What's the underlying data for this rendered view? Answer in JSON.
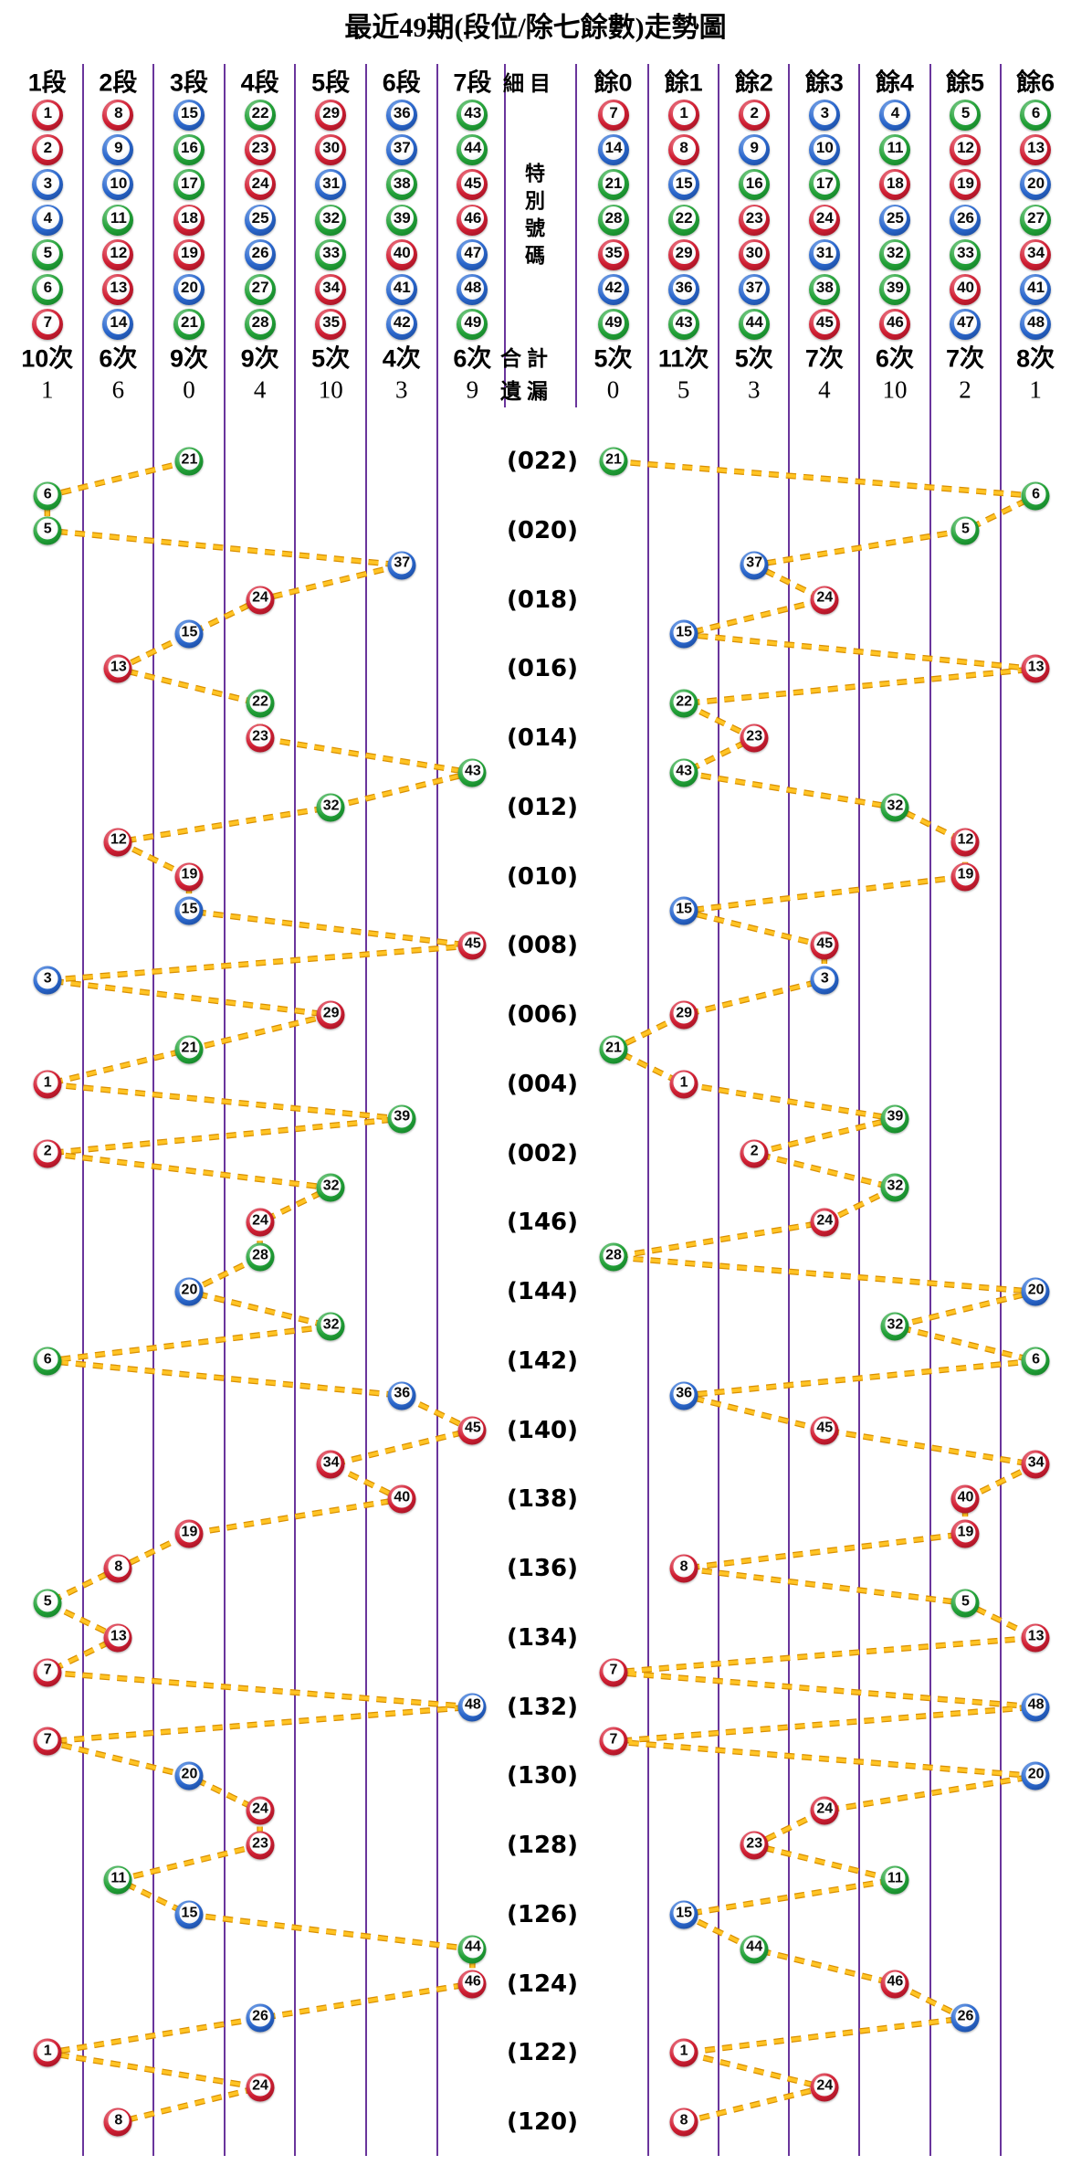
{
  "title": "最近49期(段位/除七餘數)走勢圖",
  "header": {
    "middle": {
      "detail": "細目",
      "special": "特別號碼",
      "total": "合計",
      "miss": "遺漏"
    },
    "left_columns": [
      {
        "label": "1段",
        "balls": [
          1,
          2,
          3,
          4,
          5,
          6,
          7
        ],
        "count": "10次",
        "miss": "1"
      },
      {
        "label": "2段",
        "balls": [
          8,
          9,
          10,
          11,
          12,
          13,
          14
        ],
        "count": "6次",
        "miss": "6"
      },
      {
        "label": "3段",
        "balls": [
          15,
          16,
          17,
          18,
          19,
          20,
          21
        ],
        "count": "9次",
        "miss": "0"
      },
      {
        "label": "4段",
        "balls": [
          22,
          23,
          24,
          25,
          26,
          27,
          28
        ],
        "count": "9次",
        "miss": "4"
      },
      {
        "label": "5段",
        "balls": [
          29,
          30,
          31,
          32,
          33,
          34,
          35
        ],
        "count": "5次",
        "miss": "10"
      },
      {
        "label": "6段",
        "balls": [
          36,
          37,
          38,
          39,
          40,
          41,
          42
        ],
        "count": "4次",
        "miss": "3"
      },
      {
        "label": "7段",
        "balls": [
          43,
          44,
          45,
          46,
          47,
          48,
          49
        ],
        "count": "6次",
        "miss": "9"
      }
    ],
    "right_columns": [
      {
        "label": "餘0",
        "balls": [
          7,
          14,
          21,
          28,
          35,
          42,
          49
        ],
        "count": "5次",
        "miss": "0"
      },
      {
        "label": "餘1",
        "balls": [
          1,
          8,
          15,
          22,
          29,
          36,
          43
        ],
        "count": "11次",
        "miss": "5"
      },
      {
        "label": "餘2",
        "balls": [
          2,
          9,
          16,
          23,
          30,
          37,
          44
        ],
        "count": "5次",
        "miss": "3"
      },
      {
        "label": "餘3",
        "balls": [
          3,
          10,
          17,
          24,
          31,
          38,
          45
        ],
        "count": "7次",
        "miss": "4"
      },
      {
        "label": "餘4",
        "balls": [
          4,
          11,
          18,
          25,
          32,
          39,
          46
        ],
        "count": "6次",
        "miss": "10"
      },
      {
        "label": "餘5",
        "balls": [
          5,
          12,
          19,
          26,
          33,
          40,
          47
        ],
        "count": "7次",
        "miss": "2"
      },
      {
        "label": "餘6",
        "balls": [
          6,
          13,
          20,
          27,
          34,
          41,
          48
        ],
        "count": "8次",
        "miss": "1"
      }
    ]
  },
  "chart_data": {
    "type": "scatter",
    "title": "最近49期(段位/除七餘數)走勢圖",
    "left_section_columns": [
      "1段",
      "2段",
      "3段",
      "4段",
      "5段",
      "6段",
      "7段"
    ],
    "right_section_columns": [
      "餘0",
      "餘1",
      "餘2",
      "餘3",
      "餘4",
      "餘5",
      "餘6"
    ],
    "period_labels": [
      "(022)",
      "(020)",
      "(018)",
      "(016)",
      "(014)",
      "(012)",
      "(010)",
      "(008)",
      "(006)",
      "(004)",
      "(002)",
      "(146)",
      "(144)",
      "(142)",
      "(140)",
      "(138)",
      "(136)",
      "(134)",
      "(132)",
      "(130)",
      "(128)",
      "(126)",
      "(124)",
      "(122)",
      "(120)"
    ],
    "rows": [
      {
        "label": "(022)",
        "n": 21,
        "seg": 3,
        "mod": 0
      },
      {
        "label": "",
        "n": 6,
        "seg": 1,
        "mod": 6
      },
      {
        "label": "(020)",
        "n": 5,
        "seg": 1,
        "mod": 5
      },
      {
        "label": "",
        "n": 37,
        "seg": 6,
        "mod": 2
      },
      {
        "label": "(018)",
        "n": 24,
        "seg": 4,
        "mod": 3
      },
      {
        "label": "",
        "n": 15,
        "seg": 3,
        "mod": 1
      },
      {
        "label": "(016)",
        "n": 13,
        "seg": 2,
        "mod": 6
      },
      {
        "label": "",
        "n": 22,
        "seg": 4,
        "mod": 1
      },
      {
        "label": "(014)",
        "n": 23,
        "seg": 4,
        "mod": 2
      },
      {
        "label": "",
        "n": 43,
        "seg": 7,
        "mod": 1
      },
      {
        "label": "(012)",
        "n": 32,
        "seg": 5,
        "mod": 4
      },
      {
        "label": "",
        "n": 12,
        "seg": 2,
        "mod": 5
      },
      {
        "label": "(010)",
        "n": 19,
        "seg": 3,
        "mod": 5
      },
      {
        "label": "",
        "n": 15,
        "seg": 3,
        "mod": 1
      },
      {
        "label": "(008)",
        "n": 45,
        "seg": 7,
        "mod": 3
      },
      {
        "label": "",
        "n": 3,
        "seg": 1,
        "mod": 3
      },
      {
        "label": "(006)",
        "n": 29,
        "seg": 5,
        "mod": 1
      },
      {
        "label": "",
        "n": 21,
        "seg": 3,
        "mod": 0
      },
      {
        "label": "(004)",
        "n": 1,
        "seg": 1,
        "mod": 1
      },
      {
        "label": "",
        "n": 39,
        "seg": 6,
        "mod": 4
      },
      {
        "label": "(002)",
        "n": 2,
        "seg": 1,
        "mod": 2
      },
      {
        "label": "",
        "n": 32,
        "seg": 5,
        "mod": 4
      },
      {
        "label": "(146)",
        "n": 24,
        "seg": 4,
        "mod": 3
      },
      {
        "label": "",
        "n": 28,
        "seg": 4,
        "mod": 0
      },
      {
        "label": "(144)",
        "n": 20,
        "seg": 3,
        "mod": 6
      },
      {
        "label": "",
        "n": 32,
        "seg": 5,
        "mod": 4
      },
      {
        "label": "(142)",
        "n": 6,
        "seg": 1,
        "mod": 6
      },
      {
        "label": "",
        "n": 36,
        "seg": 6,
        "mod": 1
      },
      {
        "label": "(140)",
        "n": 45,
        "seg": 7,
        "mod": 3
      },
      {
        "label": "",
        "n": 34,
        "seg": 5,
        "mod": 6
      },
      {
        "label": "(138)",
        "n": 40,
        "seg": 6,
        "mod": 5
      },
      {
        "label": "",
        "n": 19,
        "seg": 3,
        "mod": 5
      },
      {
        "label": "(136)",
        "n": 8,
        "seg": 2,
        "mod": 1
      },
      {
        "label": "",
        "n": 5,
        "seg": 1,
        "mod": 5
      },
      {
        "label": "(134)",
        "n": 13,
        "seg": 2,
        "mod": 6
      },
      {
        "label": "",
        "n": 7,
        "seg": 1,
        "mod": 0
      },
      {
        "label": "(132)",
        "n": 48,
        "seg": 7,
        "mod": 6
      },
      {
        "label": "",
        "n": 7,
        "seg": 1,
        "mod": 0
      },
      {
        "label": "(130)",
        "n": 20,
        "seg": 3,
        "mod": 6
      },
      {
        "label": "",
        "n": 24,
        "seg": 4,
        "mod": 3
      },
      {
        "label": "(128)",
        "n": 23,
        "seg": 4,
        "mod": 2
      },
      {
        "label": "",
        "n": 11,
        "seg": 2,
        "mod": 4
      },
      {
        "label": "(126)",
        "n": 15,
        "seg": 3,
        "mod": 1
      },
      {
        "label": "",
        "n": 44,
        "seg": 7,
        "mod": 2
      },
      {
        "label": "(124)",
        "n": 46,
        "seg": 7,
        "mod": 4
      },
      {
        "label": "",
        "n": 26,
        "seg": 4,
        "mod": 5
      },
      {
        "label": "(122)",
        "n": 1,
        "seg": 1,
        "mod": 1
      },
      {
        "label": "",
        "n": 24,
        "seg": 4,
        "mod": 3
      },
      {
        "label": "(120)",
        "n": 8,
        "seg": 2,
        "mod": 1
      }
    ]
  },
  "colors": {
    "grid": "#6a359c",
    "line_core": "#ffc425",
    "line_edge": "#d98f00",
    "text": "#000000",
    "ball_palettes": {
      "red": {
        "main": "#d01f33",
        "dark": "#8c0d1d",
        "light": "#f08a97"
      },
      "blue": {
        "main": "#2b67cc",
        "dark": "#123f8c",
        "light": "#8ab2ee"
      },
      "green": {
        "main": "#23a138",
        "dark": "#0c7522",
        "light": "#8fd49b"
      }
    }
  },
  "ball_color_map": {
    "red": [
      1,
      2,
      7,
      8,
      12,
      13,
      18,
      19,
      23,
      24,
      29,
      30,
      34,
      35,
      40,
      45,
      46
    ],
    "blue": [
      3,
      4,
      9,
      10,
      14,
      15,
      20,
      25,
      26,
      31,
      36,
      37,
      41,
      42,
      47,
      48
    ],
    "green": [
      5,
      6,
      11,
      16,
      17,
      21,
      22,
      27,
      28,
      32,
      33,
      38,
      39,
      43,
      44,
      49
    ]
  }
}
